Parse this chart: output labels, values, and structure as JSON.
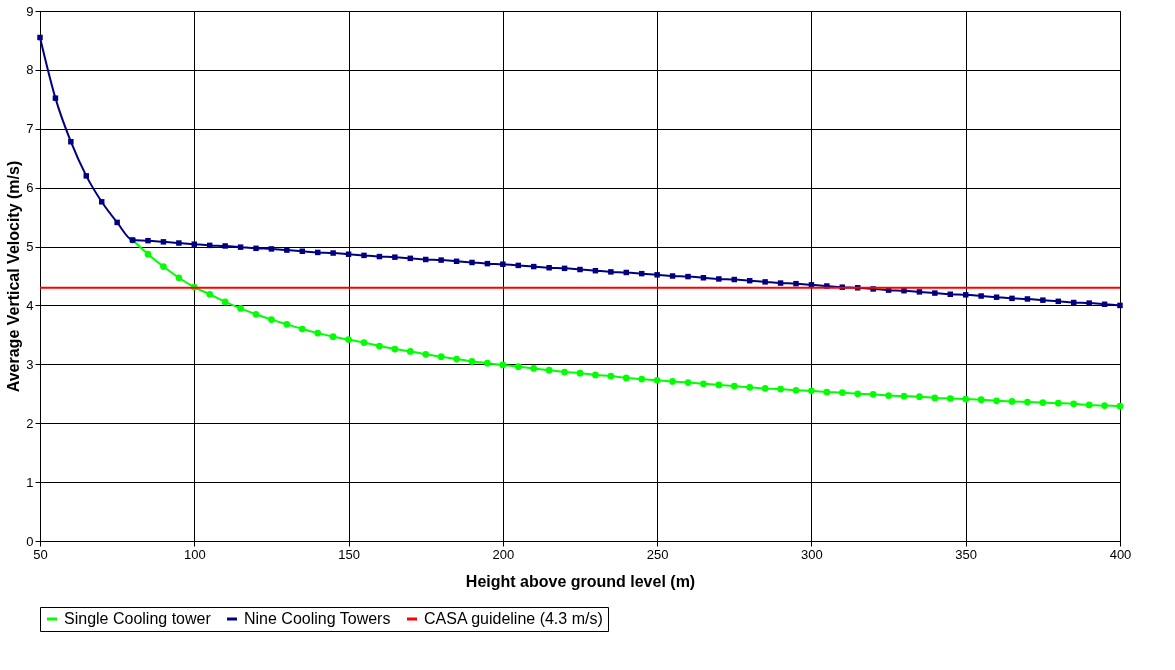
{
  "chart_data": {
    "type": "line",
    "xlabel": "Height above ground level (m)",
    "ylabel": "Average Vertical Velocity (m/s)",
    "xlim": [
      50,
      400
    ],
    "xticks": [
      50,
      100,
      150,
      200,
      250,
      300,
      350,
      400
    ],
    "ylim": [
      0,
      9
    ],
    "yticks": [
      0,
      1,
      2,
      3,
      4,
      5,
      6,
      7,
      8,
      9
    ],
    "grid": true,
    "legend": "bottom",
    "series": [
      {
        "name": "Single Cooling tower",
        "color": "#00ff00",
        "marker": "circle",
        "x": [
          80,
          85,
          90,
          95,
          100,
          105,
          110,
          115,
          120,
          125,
          130,
          135,
          140,
          145,
          150,
          155,
          160,
          165,
          170,
          175,
          180,
          185,
          190,
          195,
          200,
          205,
          210,
          215,
          220,
          225,
          230,
          235,
          240,
          245,
          250,
          255,
          260,
          265,
          270,
          275,
          280,
          285,
          290,
          295,
          300,
          305,
          310,
          315,
          320,
          325,
          330,
          335,
          340,
          345,
          350,
          355,
          360,
          365,
          370,
          375,
          380,
          385,
          390,
          395,
          400
        ],
        "values": [
          5.11,
          4.87,
          4.66,
          4.47,
          4.31,
          4.19,
          4.06,
          3.95,
          3.85,
          3.76,
          3.68,
          3.6,
          3.53,
          3.47,
          3.42,
          3.37,
          3.31,
          3.26,
          3.22,
          3.17,
          3.13,
          3.09,
          3.05,
          3.02,
          2.99,
          2.96,
          2.93,
          2.9,
          2.87,
          2.85,
          2.82,
          2.8,
          2.77,
          2.75,
          2.73,
          2.71,
          2.69,
          2.67,
          2.65,
          2.63,
          2.61,
          2.59,
          2.58,
          2.56,
          2.55,
          2.53,
          2.52,
          2.5,
          2.49,
          2.47,
          2.46,
          2.45,
          2.43,
          2.42,
          2.41,
          2.4,
          2.38,
          2.37,
          2.36,
          2.35,
          2.34,
          2.33,
          2.31,
          2.3,
          2.29
        ]
      },
      {
        "name": "Nine Cooling Towers",
        "color": "#000080",
        "marker": "square",
        "x": [
          50,
          55,
          60,
          65,
          70,
          75,
          80,
          85,
          90,
          95,
          100,
          105,
          110,
          115,
          120,
          125,
          130,
          135,
          140,
          145,
          150,
          155,
          160,
          165,
          170,
          175,
          180,
          185,
          190,
          195,
          200,
          205,
          210,
          215,
          220,
          225,
          230,
          235,
          240,
          245,
          250,
          255,
          260,
          265,
          270,
          275,
          280,
          285,
          290,
          295,
          300,
          305,
          310,
          315,
          320,
          325,
          330,
          335,
          340,
          345,
          350,
          355,
          360,
          365,
          370,
          375,
          380,
          385,
          390,
          395,
          400
        ],
        "values": [
          8.55,
          7.52,
          6.78,
          6.2,
          5.76,
          5.41,
          5.11,
          5.1,
          5.08,
          5.06,
          5.04,
          5.02,
          5.01,
          4.99,
          4.97,
          4.96,
          4.94,
          4.92,
          4.9,
          4.89,
          4.87,
          4.85,
          4.83,
          4.82,
          4.8,
          4.78,
          4.77,
          4.75,
          4.73,
          4.71,
          4.7,
          4.68,
          4.66,
          4.64,
          4.63,
          4.61,
          4.59,
          4.57,
          4.56,
          4.54,
          4.52,
          4.5,
          4.49,
          4.47,
          4.45,
          4.44,
          4.42,
          4.4,
          4.38,
          4.37,
          4.35,
          4.33,
          4.31,
          4.3,
          4.28,
          4.26,
          4.25,
          4.23,
          4.21,
          4.19,
          4.18,
          4.16,
          4.14,
          4.12,
          4.11,
          4.09,
          4.07,
          4.05,
          4.04,
          4.02,
          4.0
        ]
      },
      {
        "name": "CASA guideline (4.3 m/s)",
        "color": "#ff0000",
        "marker": "none",
        "x": [
          50,
          400
        ],
        "values": [
          4.3,
          4.3
        ]
      }
    ]
  }
}
